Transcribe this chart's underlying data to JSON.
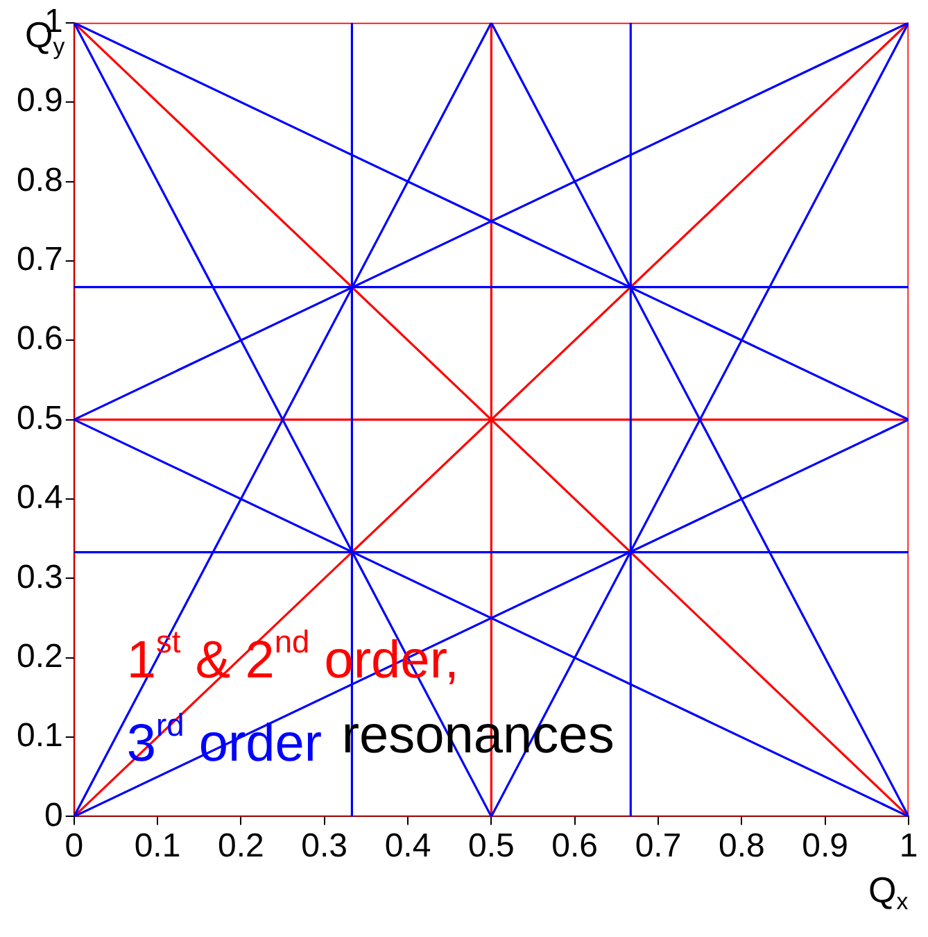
{
  "chart_data": {
    "type": "line",
    "xlabel": "Q$_{x}$",
    "ylabel": "Q$_{y}$",
    "xlim": [
      0,
      1
    ],
    "ylim": [
      0,
      1
    ],
    "xticks": [
      0,
      0.1,
      0.2,
      0.3,
      0.4,
      0.5,
      0.6,
      0.7,
      0.8,
      0.9,
      1
    ],
    "yticks": [
      0,
      0.1,
      0.2,
      0.3,
      0.4,
      0.5,
      0.6,
      0.7,
      0.8,
      0.9,
      1
    ],
    "grid": false,
    "legend": false,
    "marker": "none",
    "line_style": "solid",
    "annotations": [
      "1$^{st}$ & 2$^{nd}$ order,",
      "3$^{rd}$ order",
      "resonances"
    ],
    "series": [
      {
        "color": "#0000ff",
        "x": [
          0.333,
          0.333
        ],
        "values": [
          0,
          1
        ]
      },
      {
        "color": "#0000ff",
        "x": [
          0.667,
          0.667
        ],
        "values": [
          0,
          1
        ]
      },
      {
        "color": "#0000ff",
        "x": [
          0,
          1
        ],
        "values": [
          0.333,
          0.333
        ]
      },
      {
        "color": "#0000ff",
        "x": [
          0,
          1
        ],
        "values": [
          0.667,
          0.667
        ]
      },
      {
        "color": "#0000ff",
        "x": [
          0,
          0.5
        ],
        "values": [
          1,
          0
        ]
      },
      {
        "color": "#0000ff",
        "x": [
          0.5,
          1
        ],
        "values": [
          1,
          0
        ]
      },
      {
        "color": "#0000ff",
        "x": [
          0,
          0.5
        ],
        "values": [
          0,
          1
        ]
      },
      {
        "color": "#0000ff",
        "x": [
          0.5,
          1
        ],
        "values": [
          0,
          1
        ]
      },
      {
        "color": "#0000ff",
        "x": [
          0,
          1
        ],
        "values": [
          0.5,
          0
        ]
      },
      {
        "color": "#0000ff",
        "x": [
          0,
          1
        ],
        "values": [
          1,
          0.5
        ]
      },
      {
        "color": "#0000ff",
        "x": [
          0,
          1
        ],
        "values": [
          0,
          0.5
        ]
      },
      {
        "color": "#0000ff",
        "x": [
          0,
          1
        ],
        "values": [
          0.5,
          1
        ]
      },
      {
        "color": "#ff0000",
        "x": [
          0,
          0
        ],
        "values": [
          0,
          1
        ]
      },
      {
        "color": "#ff0000",
        "x": [
          1,
          1
        ],
        "values": [
          0,
          1
        ]
      },
      {
        "color": "#ff0000",
        "x": [
          0,
          1
        ],
        "values": [
          0,
          0
        ]
      },
      {
        "color": "#ff0000",
        "x": [
          0,
          1
        ],
        "values": [
          1,
          1
        ]
      },
      {
        "color": "#ff0000",
        "x": [
          0.5,
          0.5
        ],
        "values": [
          0,
          1
        ]
      },
      {
        "color": "#ff0000",
        "x": [
          0,
          1
        ],
        "values": [
          0.5,
          0.5
        ]
      },
      {
        "color": "#ff0000",
        "x": [
          0,
          1
        ],
        "values": [
          0,
          1
        ]
      },
      {
        "color": "#ff0000",
        "x": [
          0,
          1
        ],
        "values": [
          1,
          0
        ]
      }
    ]
  }
}
